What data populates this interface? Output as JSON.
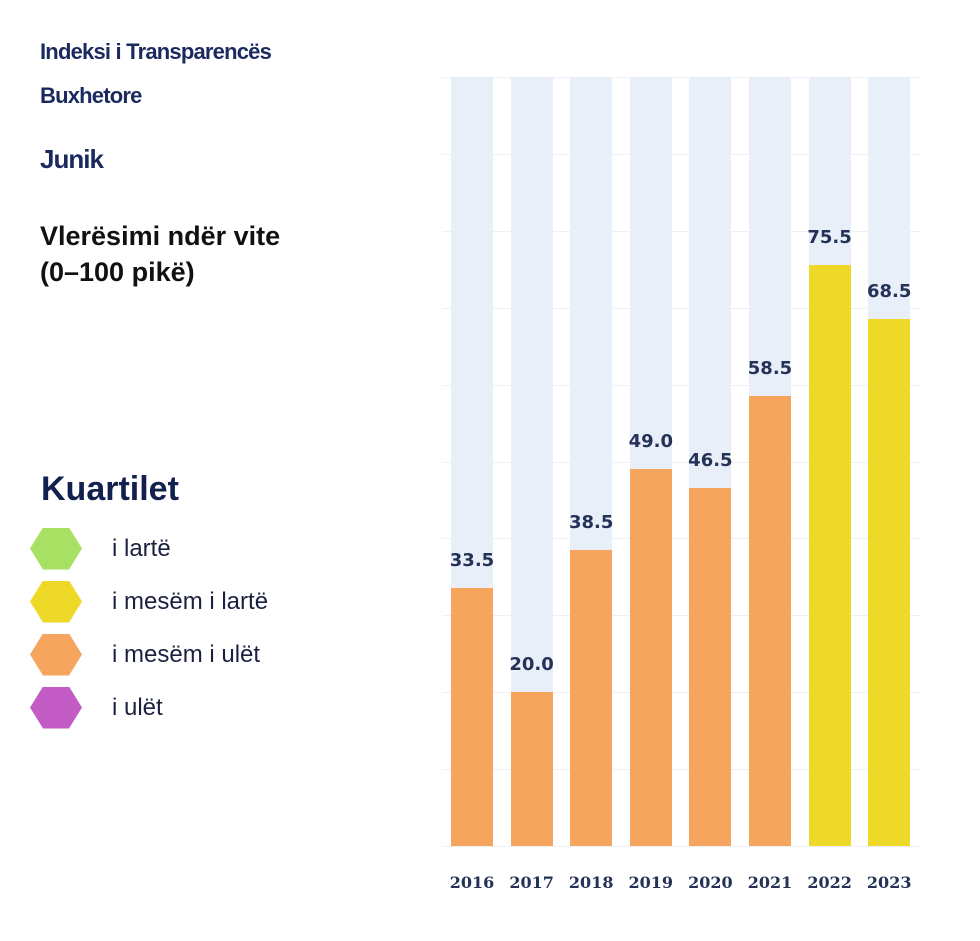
{
  "header": {
    "title_line1": "Indeksi i Transparencës",
    "title_line2": "Buxhetore",
    "municipality": "Junik",
    "metric_line1": "Vlerësimi ndër vite",
    "metric_line2": "(0–100 pikë)"
  },
  "legend": {
    "title": "Kuartilet",
    "items": [
      {
        "label": "i lartë",
        "color": "#a8e063"
      },
      {
        "label": "i mesëm i lartë",
        "color": "#efd928"
      },
      {
        "label": "i mesëm i ulët",
        "color": "#f5a55d"
      },
      {
        "label": "i ulët",
        "color": "#c25bc4"
      }
    ]
  },
  "colors": {
    "bar_background": "#e8eff8",
    "mid_low": "#f5a55d",
    "mid_high": "#efd928",
    "label_text": "#253257"
  },
  "chart_data": {
    "type": "bar",
    "title": "Indeksi i Transparencës Buxhetore – Junik",
    "subtitle": "Vlerësimi ndër vite (0–100 pikë)",
    "xlabel": "",
    "ylabel": "",
    "ylim": [
      0,
      100
    ],
    "grid": true,
    "legend_position": "left",
    "categories": [
      "2016",
      "2017",
      "2018",
      "2019",
      "2020",
      "2021",
      "2022",
      "2023"
    ],
    "values": [
      33.5,
      20.0,
      38.5,
      49.0,
      46.5,
      58.5,
      75.5,
      68.5
    ],
    "labels": [
      "33.5",
      "20.0",
      "38.5",
      "49.0",
      "46.5",
      "58.5",
      "75.5",
      "68.5"
    ],
    "quartile": [
      "i mesëm i ulët",
      "i mesëm i ulët",
      "i mesëm i ulët",
      "i mesëm i ulët",
      "i mesëm i ulët",
      "i mesëm i ulët",
      "i mesëm i lartë",
      "i mesëm i lartë"
    ],
    "bar_colors": [
      "#f5a55d",
      "#f5a55d",
      "#f5a55d",
      "#f5a55d",
      "#f5a55d",
      "#f5a55d",
      "#efd928",
      "#efd928"
    ]
  }
}
